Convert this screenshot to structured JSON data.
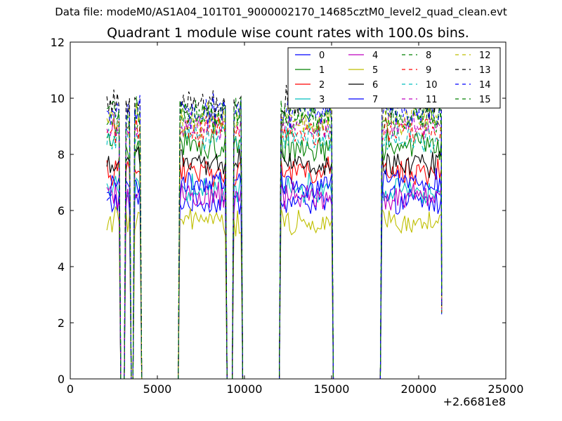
{
  "figure": {
    "supertitle": "Data file: modeM0/AS1A04_101T01_9000002170_14685cztM0_level2_quad_clean.evt",
    "offset_label": "+2.6681e8"
  },
  "chart_data": {
    "type": "line",
    "title": "Quadrant 1 module wise count rates with 100.0s bins.",
    "xlabel": "",
    "ylabel": "",
    "xlim": [
      0,
      25000
    ],
    "ylim": [
      0,
      12
    ],
    "x_offset": 266810000,
    "x_ticks": [
      0,
      5000,
      10000,
      15000,
      20000,
      25000
    ],
    "x_tick_labels": [
      "0",
      "5000",
      "10000",
      "15000",
      "20000",
      "25000"
    ],
    "y_ticks": [
      0,
      2,
      4,
      6,
      8,
      10,
      12
    ],
    "y_tick_labels": [
      "0",
      "2",
      "4",
      "6",
      "8",
      "10",
      "12"
    ],
    "grid": false,
    "legend_position": "top-right",
    "legend_columns": 4,
    "segments": [
      {
        "start": 2100,
        "end": 2800
      },
      {
        "start": 3200,
        "end": 3400
      },
      {
        "start": 3700,
        "end": 4000
      },
      {
        "start": 6300,
        "end": 8900
      },
      {
        "start": 9400,
        "end": 9800
      },
      {
        "start": 12100,
        "end": 15000
      },
      {
        "start": 17900,
        "end": 21300
      }
    ],
    "series": [
      {
        "name": "0",
        "color": "#0000ff",
        "dash": "solid",
        "mean": 6.3,
        "spread": 0.4
      },
      {
        "name": "1",
        "color": "#008000",
        "dash": "solid",
        "mean": 8.3,
        "spread": 0.5
      },
      {
        "name": "2",
        "color": "#ff0000",
        "dash": "solid",
        "mean": 7.4,
        "spread": 0.4
      },
      {
        "name": "3",
        "color": "#00bfbf",
        "dash": "solid",
        "mean": 6.8,
        "spread": 0.4
      },
      {
        "name": "4",
        "color": "#bf00bf",
        "dash": "solid",
        "mean": 6.5,
        "spread": 0.4
      },
      {
        "name": "5",
        "color": "#bfbf00",
        "dash": "solid",
        "mean": 5.6,
        "spread": 0.4
      },
      {
        "name": "6",
        "color": "#000000",
        "dash": "solid",
        "mean": 7.7,
        "spread": 0.4
      },
      {
        "name": "7",
        "color": "#0000ff",
        "dash": "solid",
        "mean": 7.0,
        "spread": 0.4
      },
      {
        "name": "8",
        "color": "#008000",
        "dash": "dashed",
        "mean": 9.3,
        "spread": 0.5
      },
      {
        "name": "9",
        "color": "#ff0000",
        "dash": "dashed",
        "mean": 8.8,
        "spread": 0.4
      },
      {
        "name": "10",
        "color": "#00bfbf",
        "dash": "dashed",
        "mean": 8.6,
        "spread": 0.4
      },
      {
        "name": "11",
        "color": "#bf00bf",
        "dash": "dashed",
        "mean": 9.0,
        "spread": 0.4
      },
      {
        "name": "12",
        "color": "#bfbf00",
        "dash": "dashed",
        "mean": 9.2,
        "spread": 0.5
      },
      {
        "name": "13",
        "color": "#000000",
        "dash": "dashed",
        "mean": 9.8,
        "spread": 0.5
      },
      {
        "name": "14",
        "color": "#0000ff",
        "dash": "dashed",
        "mean": 9.5,
        "spread": 0.5
      },
      {
        "name": "15",
        "color": "#008000",
        "dash": "dashed",
        "mean": 9.4,
        "spread": 0.5
      }
    ]
  }
}
